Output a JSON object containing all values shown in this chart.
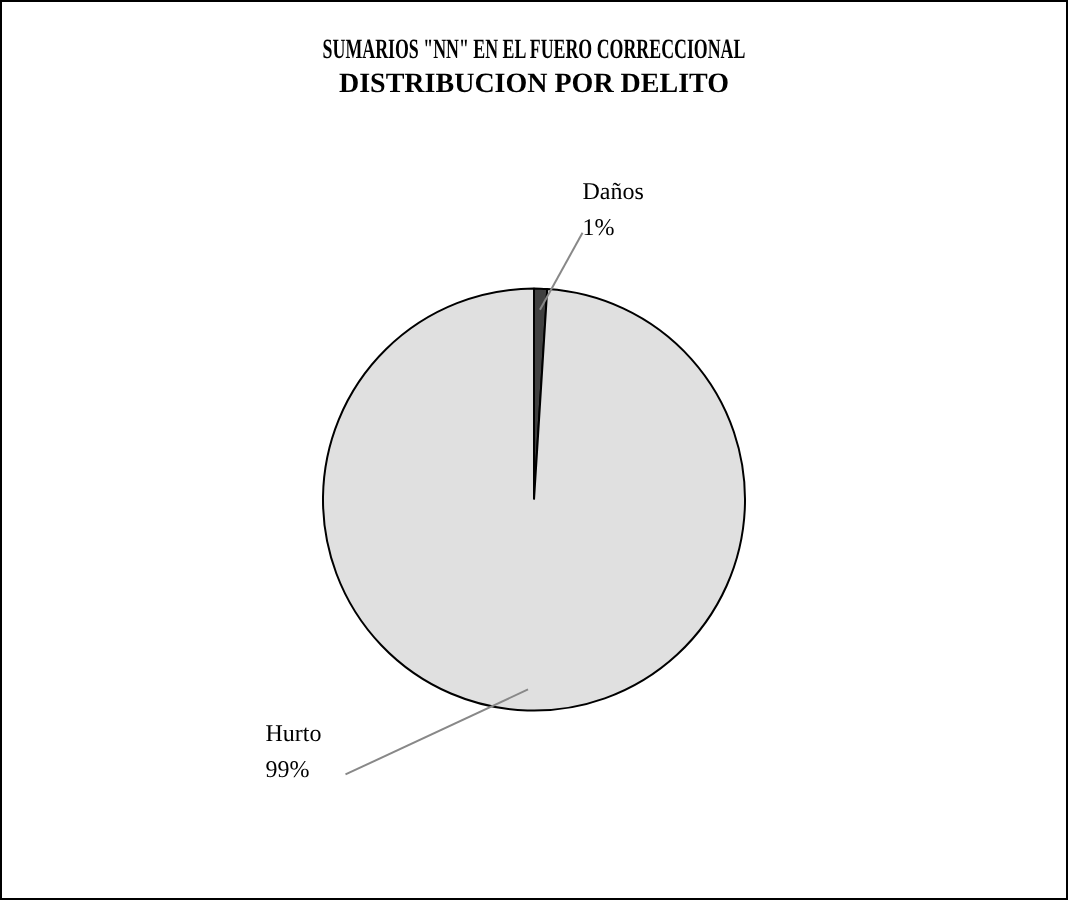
{
  "chart_data": {
    "type": "pie",
    "title": [
      "SUMARIOS \"NN\" EN EL FUERO CORRECCIONAL",
      "DISTRIBUCION POR DELITO"
    ],
    "categories": [
      "Daños",
      "Hurto"
    ],
    "values": [
      1,
      99
    ],
    "colors": [
      "#404040",
      "#e0e0e0"
    ],
    "value_labels": [
      "1%",
      "99%"
    ],
    "legend": false
  }
}
